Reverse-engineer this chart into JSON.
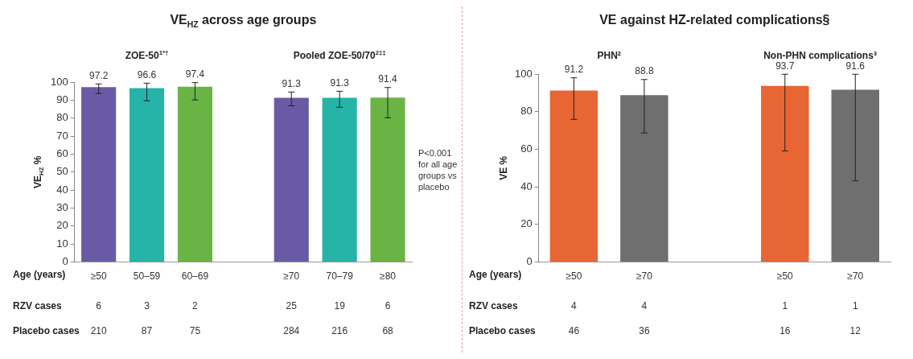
{
  "chart_data": [
    {
      "type": "bar",
      "title": "VE$_{HZ}$ across age groups",
      "ylabel": "VE$_{HZ}$ %",
      "xlabel": "Age (years)",
      "categories": [
        "≥50",
        "50–59",
        "60–69",
        null,
        "≥70",
        "70–79",
        "≥80"
      ],
      "values": [
        97.2,
        96.6,
        97.4,
        null,
        91.3,
        91.3,
        91.4
      ],
      "colors": [
        "#6a5aa6",
        "#26b3a8",
        "#6ab446",
        "#ffffff",
        "#6a5aa6",
        "#26b3a8",
        "#6ab446"
      ],
      "errors": [
        [
          93.7,
          99.0
        ],
        [
          89.6,
          99.4
        ],
        [
          90.1,
          99.7
        ],
        null,
        [
          86.8,
          94.5
        ],
        [
          86.0,
          94.9
        ],
        [
          80.2,
          97.0
        ]
      ],
      "ylim": [
        0,
        100
      ],
      "yticks": [
        0,
        10,
        20,
        30,
        40,
        50,
        60,
        70,
        80,
        90,
        100
      ],
      "data_labels": true,
      "grid": false,
      "legend": false,
      "annotations": [
        "ZOE-50$^{1*†}$",
        "Pooled ZOE-50/70$^{2‡‡}$",
        "RZV cases",
        "6",
        "3",
        "2",
        "25",
        "19",
        "6",
        "Placebo cases",
        "210",
        "87",
        "75",
        "284",
        "216",
        "68",
        "P<0.001 for all age groups vs placebo"
      ]
    },
    {
      "type": "bar",
      "title": "VE against HZ-related complications§",
      "ylabel": "VE %",
      "xlabel": "Age (years)",
      "categories": [
        "≥50",
        "≥70",
        null,
        "≥50",
        "≥70"
      ],
      "values": [
        91.2,
        88.8,
        null,
        93.7,
        91.6
      ],
      "colors": [
        "#e86534",
        "#6f6f6f",
        "#ffffff",
        "#e86534",
        "#6f6f6f"
      ],
      "errors": [
        [
          75.9,
          98.0
        ],
        [
          68.7,
          97.1
        ],
        null,
        [
          59.1,
          99.9
        ],
        [
          43.2,
          99.9
        ]
      ],
      "ylim": [
        0,
        100
      ],
      "yticks": [
        0,
        20,
        40,
        60,
        80,
        100
      ],
      "data_labels": true,
      "grid": false,
      "legend": false,
      "annotations": [
        "PHN²",
        "Non-PHN complications³",
        "RZV cases",
        "4",
        "4",
        "1",
        "1",
        "Placebo cases",
        "46",
        "36",
        "16",
        "12"
      ]
    }
  ]
}
